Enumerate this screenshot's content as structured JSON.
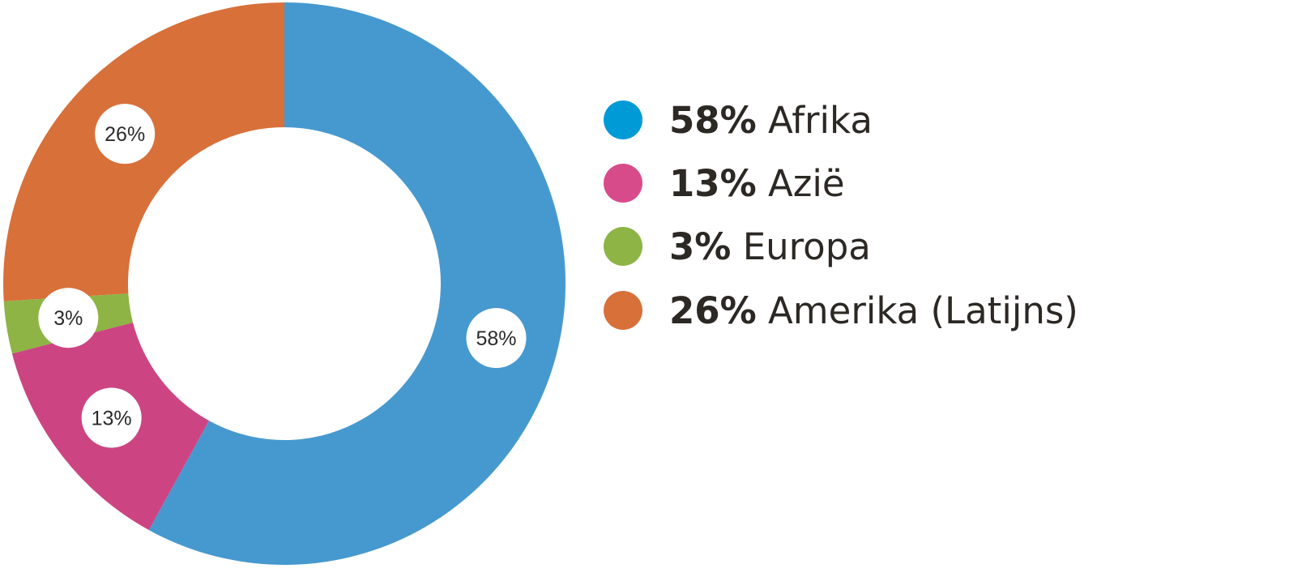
{
  "chart_data": {
    "type": "pie",
    "donut": true,
    "categories": [
      "Afrika",
      "Azië",
      "Europa",
      "Amerika (Latijns)"
    ],
    "values": [
      58,
      13,
      3,
      26
    ],
    "labels": [
      "58%",
      "13%",
      "3%",
      "26%"
    ],
    "colors": [
      "#4699cf",
      "#cc4582",
      "#8db445",
      "#d8703a"
    ],
    "legend": {
      "placement": "right",
      "items": [
        {
          "value_text": "58%",
          "name": "Afrika",
          "color": "#009ad6"
        },
        {
          "value_text": "13%",
          "name": "Azië",
          "color": "#d84b8b"
        },
        {
          "value_text": "3%",
          "name": "Europa",
          "color": "#8db445"
        },
        {
          "value_text": "26%",
          "name": "Amerika (Latijns)",
          "color": "#d8703a"
        }
      ]
    },
    "title": "",
    "xlabel": "",
    "ylabel": ""
  }
}
